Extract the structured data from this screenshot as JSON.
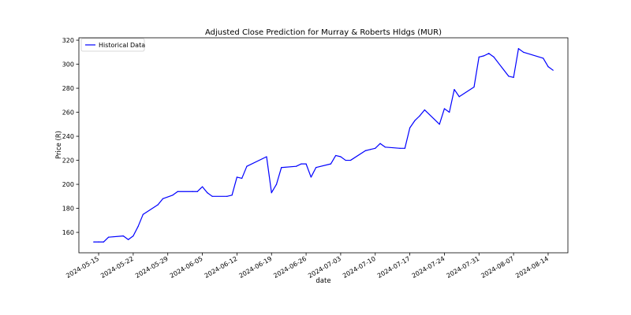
{
  "chart_data": {
    "type": "line",
    "title": "Adjusted Close Prediction for Murray & Roberts Hldgs (MUR)",
    "xlabel": "date",
    "ylabel": "Price (R)",
    "ylim": [
      143,
      322
    ],
    "y_ticks": [
      160,
      180,
      200,
      220,
      240,
      260,
      280,
      300,
      320
    ],
    "x_ticks": [
      "2024-05-15",
      "2024-05-22",
      "2024-05-29",
      "2024-06-05",
      "2024-06-12",
      "2024-06-19",
      "2024-06-26",
      "2024-07-03",
      "2024-07-10",
      "2024-07-17",
      "2024-07-24",
      "2024-07-31",
      "2024-08-07",
      "2024-08-14"
    ],
    "xlim": [
      "2024-05-11",
      "2024-08-18"
    ],
    "grid": false,
    "legend_position": "top-left",
    "series": [
      {
        "name": "Historical Data",
        "color": "#0000ff",
        "points": [
          [
            "2024-05-14",
            152
          ],
          [
            "2024-05-15",
            152
          ],
          [
            "2024-05-16",
            152
          ],
          [
            "2024-05-17",
            156
          ],
          [
            "2024-05-20",
            157
          ],
          [
            "2024-05-21",
            154
          ],
          [
            "2024-05-22",
            157
          ],
          [
            "2024-05-23",
            165
          ],
          [
            "2024-05-24",
            175
          ],
          [
            "2024-05-27",
            183
          ],
          [
            "2024-05-28",
            188
          ],
          [
            "2024-05-30",
            191
          ],
          [
            "2024-05-31",
            194
          ],
          [
            "2024-06-03",
            194
          ],
          [
            "2024-06-04",
            194
          ],
          [
            "2024-06-05",
            198
          ],
          [
            "2024-06-06",
            193
          ],
          [
            "2024-06-07",
            190
          ],
          [
            "2024-06-10",
            190
          ],
          [
            "2024-06-11",
            191
          ],
          [
            "2024-06-12",
            206
          ],
          [
            "2024-06-13",
            205
          ],
          [
            "2024-06-14",
            215
          ],
          [
            "2024-06-18",
            223
          ],
          [
            "2024-06-19",
            193
          ],
          [
            "2024-06-20",
            200
          ],
          [
            "2024-06-21",
            214
          ],
          [
            "2024-06-24",
            215
          ],
          [
            "2024-06-25",
            217
          ],
          [
            "2024-06-26",
            217
          ],
          [
            "2024-06-27",
            206
          ],
          [
            "2024-06-28",
            214
          ],
          [
            "2024-07-01",
            217
          ],
          [
            "2024-07-02",
            224
          ],
          [
            "2024-07-03",
            223
          ],
          [
            "2024-07-04",
            220
          ],
          [
            "2024-07-05",
            220
          ],
          [
            "2024-07-08",
            228
          ],
          [
            "2024-07-09",
            229
          ],
          [
            "2024-07-10",
            230
          ],
          [
            "2024-07-11",
            234
          ],
          [
            "2024-07-12",
            231
          ],
          [
            "2024-07-15",
            230
          ],
          [
            "2024-07-16",
            230
          ],
          [
            "2024-07-17",
            247
          ],
          [
            "2024-07-18",
            253
          ],
          [
            "2024-07-19",
            257
          ],
          [
            "2024-07-20",
            262
          ],
          [
            "2024-07-23",
            250
          ],
          [
            "2024-07-24",
            263
          ],
          [
            "2024-07-25",
            260
          ],
          [
            "2024-07-26",
            279
          ],
          [
            "2024-07-27",
            273
          ],
          [
            "2024-07-30",
            281
          ],
          [
            "2024-07-31",
            306
          ],
          [
            "2024-08-01",
            307
          ],
          [
            "2024-08-02",
            309
          ],
          [
            "2024-08-03",
            306
          ],
          [
            "2024-08-06",
            290
          ],
          [
            "2024-08-07",
            289
          ],
          [
            "2024-08-08",
            313
          ],
          [
            "2024-08-09",
            310
          ],
          [
            "2024-08-13",
            305
          ],
          [
            "2024-08-14",
            298
          ],
          [
            "2024-08-15",
            295
          ]
        ]
      }
    ]
  }
}
